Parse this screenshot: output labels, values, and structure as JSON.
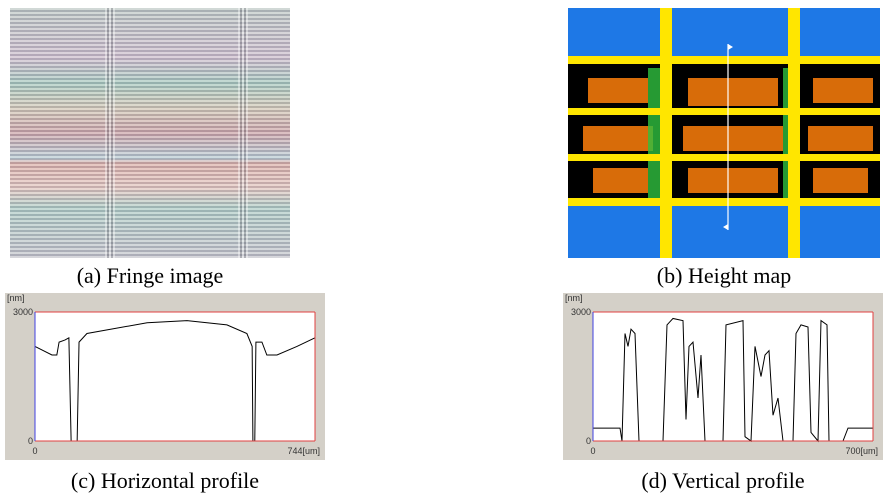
{
  "images": [
    {
      "caption": "(a) Fringe image"
    },
    {
      "caption": "(b) Height map"
    }
  ],
  "chart_data": [
    {
      "type": "line",
      "caption": "(c) Horizontal profile",
      "y_label": "[nm]",
      "color": "#000000",
      "x": [
        0,
        45,
        58,
        64,
        80,
        90,
        96,
        112,
        117,
        138,
        298,
        404,
        510,
        563,
        577,
        579,
        584,
        587,
        603,
        616,
        643,
        696,
        744
      ],
      "values": [
        2200,
        2000,
        2000,
        2300,
        2350,
        2400,
        0,
        0,
        2300,
        2500,
        2750,
        2800,
        2700,
        2500,
        2200,
        0,
        0,
        2300,
        2300,
        2000,
        2000,
        2200,
        2400
      ],
      "xlim": [
        0,
        744
      ],
      "ylim": [
        0,
        3000
      ],
      "xticks": [
        0,
        {
          "value": 744,
          "label": "744[um]"
        }
      ],
      "yticks": [
        0,
        3000
      ]
    },
    {
      "type": "line",
      "caption": "(d) Vertical profile",
      "y_label": "[nm]",
      "color": "#000000",
      "x": [
        0,
        67.5,
        72.5,
        80,
        87.5,
        95,
        105,
        115,
        175,
        185,
        200,
        225,
        232.5,
        240,
        250,
        262.5,
        270,
        280,
        325,
        332.5,
        375,
        380,
        395,
        405,
        420,
        430,
        440,
        450,
        462.5,
        475,
        500,
        507.5,
        520,
        537.5,
        545,
        562.5,
        570,
        585,
        590,
        625,
        637.5,
        700
      ],
      "values": [
        300,
        300,
        0,
        2500,
        2200,
        2600,
        2500,
        0,
        0,
        2700,
        2850,
        2800,
        500,
        2200,
        2300,
        1000,
        2000,
        0,
        0,
        2700,
        2800,
        100,
        0,
        2200,
        1500,
        2000,
        2100,
        600,
        1000,
        0,
        0,
        2500,
        2700,
        2650,
        200,
        0,
        2800,
        2700,
        0,
        0,
        300,
        300
      ],
      "xlim": [
        0,
        700
      ],
      "ylim": [
        0,
        3000
      ],
      "xticks": [
        0,
        {
          "value": 700,
          "label": "700[um]"
        }
      ],
      "yticks": [
        0,
        3000
      ]
    }
  ]
}
